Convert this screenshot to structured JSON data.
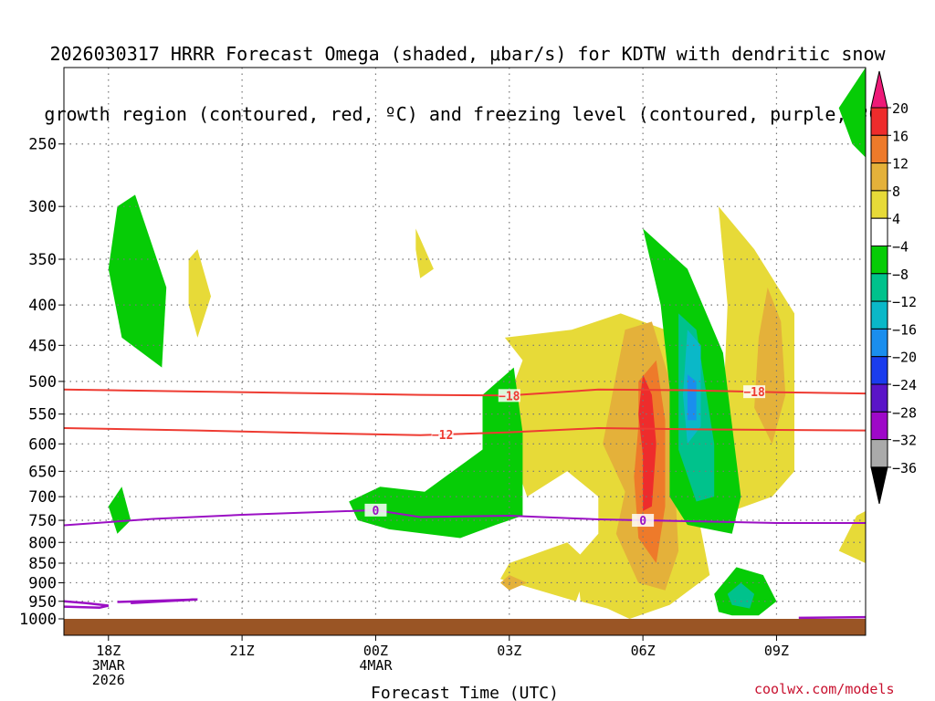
{
  "chart_data": {
    "type": "heatmap",
    "title": [
      "2026030317 HRRR Forecast Omega (shaded, μbar/s) for KDTW with dendritic snow",
      "growth region (contoured, red, ºC) and freezing level (contoured, purple, ºC)"
    ],
    "xlabel": "Forecast Time (UTC)",
    "ylabel": "",
    "x_ticks": [
      {
        "hour": 1,
        "lines": [
          "18Z",
          "3MAR",
          "2026"
        ]
      },
      {
        "hour": 4,
        "lines": [
          "21Z"
        ]
      },
      {
        "hour": 7,
        "lines": [
          "00Z",
          "4MAR"
        ]
      },
      {
        "hour": 10,
        "lines": [
          "03Z"
        ]
      },
      {
        "hour": 13,
        "lines": [
          "06Z"
        ]
      },
      {
        "hour": 16,
        "lines": [
          "09Z"
        ]
      }
    ],
    "x_range_hours": [
      0,
      18
    ],
    "y_range_hpa": [
      200,
      1000
    ],
    "y_ticks": [
      250,
      300,
      350,
      400,
      450,
      500,
      550,
      600,
      650,
      700,
      750,
      800,
      850,
      900,
      950,
      1000
    ],
    "colorbar": {
      "labels": [
        "20",
        "16",
        "12",
        "8",
        "4",
        "−4",
        "−8",
        "−12",
        "−16",
        "−20",
        "−24",
        "−28",
        "−32",
        "−36"
      ],
      "colors": [
        "#ee1a78",
        "#ee2c2c",
        "#ee7a2a",
        "#e4b13a",
        "#e7da38",
        "#ffffff",
        "#06cc06",
        "#00c28c",
        "#0ab8c8",
        "#1a8eee",
        "#1a3cee",
        "#5a14c8",
        "#9e08c8",
        "#aaaaaa",
        "#000000"
      ]
    },
    "contours": [
      {
        "name": "dgz-minus18",
        "label": "−18",
        "color": "#ee3b32",
        "points": [
          [
            0,
            512
          ],
          [
            3,
            515
          ],
          [
            6,
            518
          ],
          [
            7,
            519
          ],
          [
            8,
            520
          ],
          [
            10,
            521
          ],
          [
            12,
            512
          ],
          [
            14,
            513
          ],
          [
            16,
            516
          ],
          [
            18,
            518
          ]
        ]
      },
      {
        "name": "dgz-minus12",
        "label": "−12",
        "color": "#ee3b32",
        "points": [
          [
            0,
            573
          ],
          [
            3,
            577
          ],
          [
            6,
            582
          ],
          [
            8,
            585
          ],
          [
            10,
            580
          ],
          [
            12,
            573
          ],
          [
            14,
            575
          ],
          [
            16,
            576
          ],
          [
            18,
            577
          ]
        ]
      },
      {
        "name": "freezing-level",
        "label": "0",
        "color": "#9b10c4",
        "points": [
          [
            0,
            761
          ],
          [
            2,
            747
          ],
          [
            4,
            738
          ],
          [
            7,
            728
          ],
          [
            8,
            743
          ],
          [
            10,
            740
          ],
          [
            12,
            748
          ],
          [
            14,
            752
          ],
          [
            16,
            756
          ],
          [
            18,
            756
          ]
        ]
      }
    ],
    "omega_regions": [
      {
        "color": "#06cc06",
        "points": [
          [
            1.6,
            290
          ],
          [
            2.3,
            380
          ],
          [
            2.2,
            480
          ],
          [
            1.3,
            440
          ],
          [
            1.0,
            360
          ],
          [
            1.2,
            300
          ]
        ]
      },
      {
        "color": "#e7da38",
        "points": [
          [
            3.0,
            340
          ],
          [
            3.3,
            390
          ],
          [
            3.0,
            440
          ],
          [
            2.8,
            400
          ],
          [
            2.8,
            350
          ]
        ]
      },
      {
        "color": "#06cc06",
        "points": [
          [
            1.3,
            680
          ],
          [
            1.5,
            750
          ],
          [
            1.2,
            780
          ],
          [
            1.0,
            720
          ]
        ]
      },
      {
        "color": "#e7da38",
        "points": [
          [
            7.9,
            320
          ],
          [
            8.3,
            360
          ],
          [
            8.0,
            370
          ],
          [
            7.9,
            340
          ]
        ]
      },
      {
        "color": "#06cc06",
        "points": [
          [
            17.7,
            250
          ],
          [
            17.4,
            225
          ],
          [
            18,
            200
          ],
          [
            18,
            260
          ]
        ]
      },
      {
        "color": "#e7da38",
        "points": [
          [
            9.9,
            440
          ],
          [
            11.4,
            430
          ],
          [
            12.5,
            410
          ],
          [
            13.5,
            430
          ],
          [
            14.1,
            560
          ],
          [
            14.2,
            720
          ],
          [
            14.5,
            880
          ],
          [
            13.6,
            960
          ],
          [
            12.7,
            1000
          ],
          [
            12.2,
            970
          ],
          [
            11.6,
            950
          ],
          [
            11.5,
            840
          ],
          [
            12.0,
            780
          ],
          [
            12.0,
            700
          ],
          [
            11.3,
            650
          ],
          [
            10.4,
            700
          ],
          [
            9.8,
            560
          ],
          [
            10.3,
            470
          ]
        ]
      },
      {
        "color": "#e7da38",
        "points": [
          [
            10.0,
            850
          ],
          [
            11.3,
            800
          ],
          [
            11.8,
            850
          ],
          [
            11.5,
            950
          ],
          [
            9.8,
            890
          ]
        ]
      },
      {
        "color": "#e4b13a",
        "points": [
          [
            10.0,
            880
          ],
          [
            10.4,
            900
          ],
          [
            10.0,
            920
          ],
          [
            9.8,
            900
          ]
        ]
      },
      {
        "color": "#e4b13a",
        "points": [
          [
            12.6,
            430
          ],
          [
            13.2,
            420
          ],
          [
            13.7,
            520
          ],
          [
            13.7,
            650
          ],
          [
            13.8,
            820
          ],
          [
            13.5,
            920
          ],
          [
            12.9,
            900
          ],
          [
            12.4,
            780
          ],
          [
            12.6,
            690
          ],
          [
            12.1,
            600
          ],
          [
            12.4,
            490
          ]
        ]
      },
      {
        "color": "#ee7a2a",
        "points": [
          [
            12.9,
            500
          ],
          [
            13.3,
            470
          ],
          [
            13.5,
            560
          ],
          [
            13.5,
            720
          ],
          [
            13.3,
            850
          ],
          [
            12.9,
            790
          ],
          [
            12.8,
            660
          ],
          [
            12.9,
            570
          ]
        ]
      },
      {
        "color": "#ee2c2c",
        "points": [
          [
            13.0,
            490
          ],
          [
            13.2,
            520
          ],
          [
            13.3,
            600
          ],
          [
            13.2,
            720
          ],
          [
            13.0,
            730
          ],
          [
            13.0,
            620
          ],
          [
            12.9,
            550
          ]
        ]
      },
      {
        "color": "#e7da38",
        "points": [
          [
            14.7,
            300
          ],
          [
            15.5,
            340
          ],
          [
            16.4,
            410
          ],
          [
            16.4,
            650
          ],
          [
            15.9,
            700
          ],
          [
            15.0,
            730
          ],
          [
            14.8,
            550
          ],
          [
            14.9,
            400
          ]
        ]
      },
      {
        "color": "#e4b13a",
        "points": [
          [
            15.8,
            380
          ],
          [
            16.1,
            420
          ],
          [
            16.2,
            520
          ],
          [
            15.9,
            600
          ],
          [
            15.5,
            540
          ],
          [
            15.6,
            440
          ]
        ]
      },
      {
        "color": "#06cc06",
        "points": [
          [
            13.0,
            320
          ],
          [
            14.0,
            360
          ],
          [
            14.8,
            460
          ],
          [
            15.2,
            700
          ],
          [
            15.0,
            780
          ],
          [
            14.0,
            760
          ],
          [
            13.6,
            700
          ],
          [
            13.6,
            510
          ],
          [
            13.4,
            400
          ]
        ]
      },
      {
        "color": "#00c28c",
        "points": [
          [
            13.8,
            410
          ],
          [
            14.2,
            430
          ],
          [
            14.6,
            600
          ],
          [
            14.6,
            700
          ],
          [
            14.2,
            710
          ],
          [
            13.8,
            610
          ]
        ]
      },
      {
        "color": "#0ab8c8",
        "points": [
          [
            14.0,
            430
          ],
          [
            14.3,
            450
          ],
          [
            14.3,
            570
          ],
          [
            14.0,
            600
          ],
          [
            13.9,
            520
          ]
        ]
      },
      {
        "color": "#1a8eee",
        "points": [
          [
            14.0,
            490
          ],
          [
            14.2,
            500
          ],
          [
            14.2,
            560
          ],
          [
            14.0,
            560
          ]
        ]
      },
      {
        "color": "#06cc06",
        "points": [
          [
            14.6,
            930
          ],
          [
            15.1,
            860
          ],
          [
            15.7,
            880
          ],
          [
            16.0,
            950
          ],
          [
            15.6,
            990
          ],
          [
            15.0,
            990
          ],
          [
            14.7,
            980
          ]
        ]
      },
      {
        "color": "#00c28c",
        "points": [
          [
            14.9,
            930
          ],
          [
            15.2,
            900
          ],
          [
            15.5,
            930
          ],
          [
            15.4,
            970
          ],
          [
            15.0,
            960
          ]
        ]
      },
      {
        "color": "#06cc06",
        "points": [
          [
            6.4,
            710
          ],
          [
            7.1,
            680
          ],
          [
            8.1,
            690
          ],
          [
            9.4,
            610
          ],
          [
            9.4,
            520
          ],
          [
            10.1,
            480
          ],
          [
            10.3,
            580
          ],
          [
            10.3,
            740
          ],
          [
            9.7,
            760
          ],
          [
            8.9,
            790
          ],
          [
            7.3,
            770
          ],
          [
            6.6,
            750
          ]
        ]
      },
      {
        "color": "#e7da38",
        "points": [
          [
            17.8,
            740
          ],
          [
            18,
            730
          ],
          [
            18,
            850
          ],
          [
            17.4,
            820
          ]
        ]
      }
    ],
    "surface": {
      "pressure_hpa": 1000,
      "color": "#9a5525"
    },
    "surface_freezing_contours": [
      {
        "color": "#9b10c4",
        "points": [
          [
            0,
            950
          ],
          [
            0.5,
            955
          ],
          [
            1.0,
            962
          ],
          [
            0.8,
            968
          ],
          [
            0,
            965
          ]
        ]
      },
      {
        "color": "#9b10c4",
        "points": [
          [
            1.2,
            952
          ],
          [
            3.0,
            945
          ],
          [
            1.5,
            955
          ]
        ]
      },
      {
        "color": "#9b10c4",
        "points": [
          [
            16.5,
            997
          ],
          [
            18,
            995
          ]
        ]
      }
    ]
  },
  "credit": "coolwx.com/models"
}
